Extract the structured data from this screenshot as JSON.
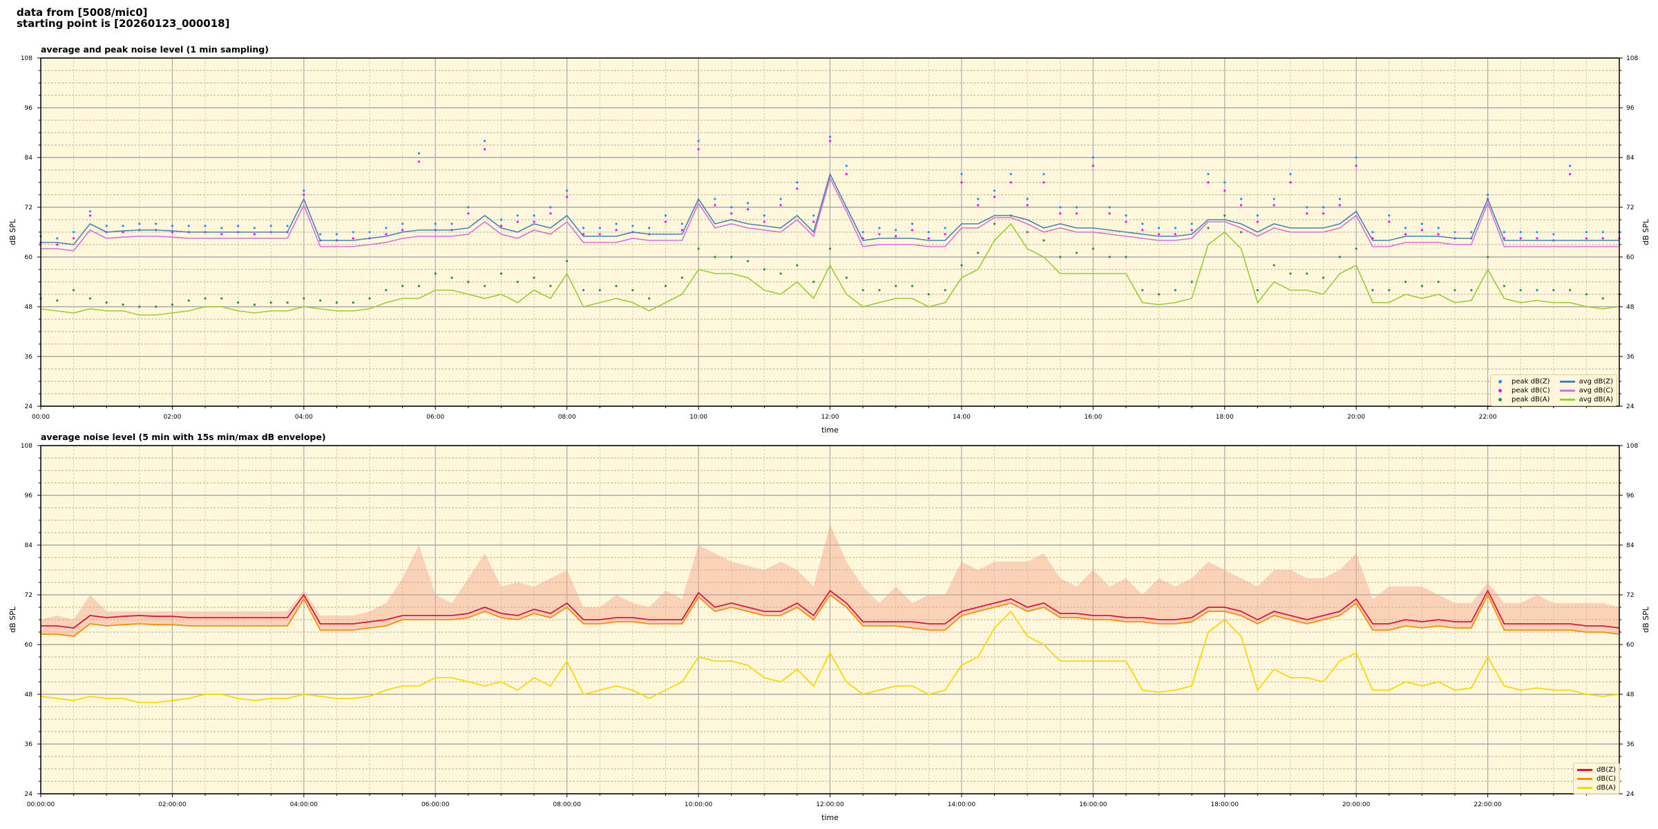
{
  "header": {
    "line1": "data from [5008/mic0]",
    "line2": "starting point is [20260123_000018]"
  },
  "colors": {
    "background": "#fff8dc",
    "peak_z": "#1e90ff",
    "peak_c": "#ff00ff",
    "peak_a": "#2e8b57",
    "avg_z": "#4682b4",
    "avg_c": "#da70d6",
    "avg_a": "#9acd32",
    "db_z": "#dc143c",
    "db_c": "#ff8c00",
    "db_a": "#ffd700",
    "envelope": "#f2a48c"
  },
  "chart_data": [
    {
      "type": "line",
      "title": "average and peak noise level (1 min sampling)",
      "xlabel": "time",
      "ylabel": "dB SPL",
      "xlim_hours": [
        0,
        24
      ],
      "ylim": [
        24,
        108
      ],
      "yticks": [
        "108",
        "96",
        "84",
        "72",
        "60",
        "48",
        "36",
        "24"
      ],
      "xticks": [
        "00:00",
        "02:00",
        "04:00",
        "06:00",
        "08:00",
        "10:00",
        "12:00",
        "14:00",
        "16:00",
        "18:00",
        "20:00",
        "22:00"
      ],
      "grid": true,
      "legend_position": "bottom-right",
      "x_step_minutes": 15,
      "series": [
        {
          "name": "peak dB(Z)",
          "kind": "scatter",
          "color": "#1e90ff",
          "values": [
            65,
            64.5,
            66,
            71,
            67.5,
            67.5,
            68,
            68,
            67.5,
            67.5,
            67.5,
            67,
            67.5,
            67,
            67.5,
            67.5,
            76,
            65.5,
            65.5,
            66,
            66,
            67,
            68,
            85,
            68,
            68,
            72,
            88,
            69,
            70,
            70,
            72,
            76,
            67,
            67,
            68,
            67.5,
            67,
            70,
            68,
            88,
            74,
            72,
            73,
            70,
            74,
            78,
            70,
            89,
            82,
            66,
            67,
            66.5,
            68,
            66,
            67,
            80,
            74,
            76,
            80,
            74,
            80,
            72,
            72,
            84,
            72,
            70,
            68,
            67,
            67,
            68,
            80,
            78,
            74,
            70,
            74,
            80,
            72,
            72,
            74,
            84,
            66,
            70,
            67,
            68,
            67,
            66,
            66,
            75,
            66,
            66,
            66,
            65.5,
            82,
            66,
            66,
            66
          ]
        },
        {
          "name": "peak dB(C)",
          "kind": "scatter",
          "color": "#ff00ff",
          "values": [
            63.5,
            63,
            64.5,
            70,
            66,
            66,
            66.5,
            66.5,
            66,
            66,
            66,
            65.5,
            66,
            65.5,
            66,
            66,
            75,
            64,
            64,
            64.5,
            64.5,
            65.5,
            66.5,
            83,
            66.5,
            66.5,
            70.5,
            86,
            67.5,
            68.5,
            68.5,
            70.5,
            74.5,
            65.5,
            65.5,
            66.5,
            66,
            65.5,
            68.5,
            66.5,
            86,
            72.5,
            70.5,
            71.5,
            68.5,
            72.5,
            76.5,
            68.5,
            88,
            80,
            64.5,
            65.5,
            65,
            66.5,
            64.5,
            65.5,
            78,
            72.5,
            74.5,
            78,
            72.5,
            78,
            70.5,
            70.5,
            82,
            70.5,
            68.5,
            66.5,
            65.5,
            65.5,
            66.5,
            78,
            76,
            72.5,
            68.5,
            72.5,
            78,
            70.5,
            70.5,
            72.5,
            82,
            64.5,
            68.5,
            65.5,
            66.5,
            65.5,
            64.5,
            64.5,
            74,
            64.5,
            64.5,
            64.5,
            64,
            80,
            64.5,
            64.5,
            64.5
          ]
        },
        {
          "name": "peak dB(A)",
          "kind": "scatter",
          "color": "#2e8b57",
          "values": [
            50,
            49.5,
            52,
            50,
            49,
            48.5,
            48,
            48,
            48.5,
            49.5,
            50,
            50,
            49,
            48.5,
            49,
            49,
            50,
            49.5,
            49,
            49,
            50,
            52,
            53,
            53,
            56,
            55,
            54,
            53,
            56,
            54,
            55,
            53,
            59,
            52,
            52,
            53,
            52,
            50,
            53,
            55,
            62,
            60,
            60,
            59,
            57,
            56,
            58,
            54,
            62,
            55,
            52,
            52,
            53,
            53,
            51,
            52,
            58,
            61,
            68,
            70,
            66,
            64,
            60,
            61,
            62,
            60,
            60,
            52,
            51,
            52,
            54,
            67,
            70,
            66,
            52,
            58,
            56,
            56,
            55,
            60,
            62,
            52,
            52,
            54,
            53,
            54,
            52,
            52,
            60,
            53,
            52,
            52,
            52,
            52,
            51,
            50,
            51
          ]
        },
        {
          "name": "avg dB(Z)",
          "kind": "line",
          "color": "#4682b4",
          "values": [
            63.5,
            63.5,
            63,
            68,
            66,
            66.3,
            66.5,
            66.5,
            66.3,
            66,
            66,
            66,
            66,
            66,
            66,
            66,
            74,
            64,
            64,
            64,
            64.5,
            65,
            66,
            66.5,
            66.5,
            66.5,
            67,
            70,
            67,
            66,
            68,
            67,
            70,
            65,
            65,
            65,
            66,
            65.5,
            65.5,
            65.5,
            74,
            68,
            69,
            68,
            67.5,
            67,
            70,
            66,
            80,
            72,
            64,
            64.5,
            64.5,
            64.5,
            64,
            64,
            68,
            68,
            70,
            70,
            69,
            67,
            68,
            67,
            67,
            66.5,
            66,
            65.5,
            65,
            65,
            65.5,
            69,
            69,
            68,
            66,
            68,
            67,
            67,
            67,
            68,
            71,
            64,
            64,
            65,
            65,
            65,
            64.5,
            64.5,
            74,
            64,
            64,
            64,
            64,
            64,
            64,
            64,
            64
          ]
        },
        {
          "name": "avg dB(C)",
          "kind": "line",
          "color": "#da70d6",
          "values": [
            62,
            62,
            61.5,
            66.5,
            64.5,
            64.8,
            65,
            65,
            64.8,
            64.5,
            64.5,
            64.5,
            64.5,
            64.5,
            64.5,
            64.5,
            72.5,
            62.5,
            62.5,
            62.5,
            63,
            63.5,
            64.5,
            65,
            65,
            65,
            65.5,
            68.5,
            65.5,
            64.5,
            66.5,
            65.5,
            68.5,
            63.5,
            63.5,
            63.5,
            64.5,
            64,
            64,
            64,
            73,
            67,
            68,
            67,
            66.5,
            66,
            69,
            65,
            79,
            71,
            62.5,
            63,
            63,
            63,
            62.5,
            62.5,
            67,
            67,
            69.5,
            69.5,
            68,
            66,
            67,
            66,
            66,
            65.5,
            65,
            64.5,
            64,
            64,
            64.5,
            68.5,
            68.5,
            67,
            65,
            67,
            66,
            66,
            66,
            67,
            70,
            62.5,
            62.5,
            63.5,
            63.5,
            63.5,
            63,
            63,
            73,
            62.5,
            62.5,
            62.5,
            62.5,
            62.5,
            62.5,
            62.5,
            62.5
          ]
        },
        {
          "name": "avg dB(A)",
          "kind": "line",
          "color": "#9acd32",
          "values": [
            47.5,
            47,
            46.5,
            47.5,
            47,
            47,
            46,
            46,
            46.5,
            47,
            48,
            48,
            47,
            46.5,
            47,
            47,
            48,
            47.5,
            47,
            47,
            47.5,
            49,
            50,
            50,
            52,
            52,
            51,
            50,
            51,
            49,
            52,
            50,
            56,
            48,
            49,
            50,
            49,
            47,
            49,
            51,
            57,
            56,
            56,
            55,
            52,
            51,
            54,
            50,
            58,
            51,
            48,
            49,
            50,
            50,
            48,
            49,
            55,
            57,
            64,
            68,
            62,
            60,
            56,
            56,
            56,
            56,
            56,
            49,
            48.5,
            49,
            50,
            63,
            66,
            62,
            49,
            54,
            52,
            52,
            51,
            56,
            58,
            49,
            49,
            51,
            50,
            51,
            49,
            49.5,
            57,
            50,
            49,
            49.5,
            49,
            49,
            48,
            47.5,
            48
          ]
        }
      ]
    },
    {
      "type": "line",
      "title": "average noise level (5 min with 15s min/max dB envelope)",
      "xlabel": "time",
      "ylabel": "dB SPL",
      "xlim_hours": [
        0,
        24
      ],
      "ylim": [
        24,
        108
      ],
      "yticks": [
        "108",
        "96",
        "84",
        "72",
        "60",
        "48",
        "36",
        "24"
      ],
      "xticks": [
        "00:00:00",
        "02:00:00",
        "04:00:00",
        "06:00:00",
        "08:00:00",
        "10:00:00",
        "12:00:00",
        "14:00:00",
        "16:00:00",
        "18:00:00",
        "20:00:00",
        "22:00:00"
      ],
      "grid": true,
      "legend_position": "bottom-right",
      "x_step_minutes": 15,
      "envelope_max": [
        66,
        67,
        66,
        72,
        68,
        68,
        68,
        68,
        68,
        68,
        68,
        68,
        68,
        68,
        68,
        68,
        73,
        67,
        67,
        67,
        68,
        70,
        76,
        84,
        72,
        70,
        76,
        82,
        74,
        75,
        74,
        76,
        78,
        69,
        69,
        72,
        70,
        69,
        73,
        71,
        84,
        82,
        80,
        79,
        78,
        80,
        78,
        74,
        89,
        80,
        74,
        70,
        74,
        70,
        72,
        72,
        80,
        78,
        80,
        80,
        80,
        82,
        76,
        74,
        78,
        74,
        76,
        72,
        76,
        74,
        76,
        80,
        78,
        76,
        74,
        78,
        78,
        76,
        76,
        78,
        82,
        71,
        74,
        74,
        74,
        72,
        70,
        70,
        75,
        70,
        70,
        72,
        70,
        70,
        70,
        70,
        69
      ],
      "series": [
        {
          "name": "dB(Z)",
          "color": "#dc143c",
          "values": [
            64.5,
            64.5,
            64,
            67,
            66.5,
            66.8,
            67,
            66.8,
            66.8,
            66.5,
            66.5,
            66.5,
            66.5,
            66.5,
            66.5,
            66.5,
            72,
            65,
            65,
            65,
            65.5,
            66,
            67,
            67,
            67,
            67,
            67.5,
            69,
            67.5,
            67,
            68.5,
            67.5,
            70,
            66,
            66,
            66.5,
            66.5,
            66,
            66,
            66,
            72.5,
            69,
            70,
            69,
            68,
            68,
            70,
            67,
            73,
            70,
            65.5,
            65.5,
            65.5,
            65.5,
            65,
            65,
            68,
            69,
            70,
            71,
            69,
            70,
            67.5,
            67.5,
            67,
            67,
            66.5,
            66.5,
            66,
            66,
            66.5,
            69,
            69,
            68,
            66,
            68,
            67,
            66,
            67,
            68,
            71,
            65,
            65,
            66,
            65.5,
            66,
            65.5,
            65.5,
            73,
            65,
            65,
            65,
            65,
            65,
            64.5,
            64.5,
            64
          ]
        },
        {
          "name": "dB(C)",
          "color": "#ff8c00",
          "values": [
            62.5,
            62.5,
            62,
            65,
            64.5,
            64.8,
            65,
            64.8,
            64.8,
            64.5,
            64.5,
            64.5,
            64.5,
            64.5,
            64.5,
            64.5,
            71,
            63.5,
            63.5,
            63.5,
            64,
            64.5,
            66,
            66,
            66,
            66,
            66.5,
            68,
            66.5,
            66,
            67.5,
            66.5,
            69,
            65,
            65,
            65.5,
            65.5,
            65,
            65,
            65,
            71.5,
            68,
            69,
            68,
            67,
            67,
            69,
            66,
            72,
            69,
            64.5,
            64.5,
            64.5,
            64,
            63.5,
            63.5,
            67,
            68,
            69,
            70,
            68,
            69,
            66.5,
            66.5,
            66,
            66,
            65.5,
            65.5,
            65,
            65,
            65.5,
            68,
            68,
            67,
            65,
            67,
            66,
            65,
            66,
            67,
            70,
            63.5,
            63.5,
            64.5,
            64,
            64.5,
            64,
            64,
            72,
            63.5,
            63.5,
            63.5,
            63.5,
            63.5,
            63,
            63,
            62.5
          ]
        },
        {
          "name": "dB(A)",
          "color": "#ffd700",
          "values": [
            47.5,
            47,
            46.5,
            47.5,
            47,
            47,
            46,
            46,
            46.5,
            47,
            48,
            48,
            47,
            46.5,
            47,
            47,
            48,
            47.5,
            47,
            47,
            47.5,
            49,
            50,
            50,
            52,
            52,
            51,
            50,
            51,
            49,
            52,
            50,
            56,
            48,
            49,
            50,
            49,
            47,
            49,
            51,
            57,
            56,
            56,
            55,
            52,
            51,
            54,
            50,
            58,
            51,
            48,
            49,
            50,
            50,
            48,
            49,
            55,
            57,
            64,
            68,
            62,
            60,
            56,
            56,
            56,
            56,
            56,
            49,
            48.5,
            49,
            50,
            63,
            66,
            62,
            49,
            54,
            52,
            52,
            51,
            56,
            58,
            49,
            49,
            51,
            50,
            51,
            49,
            49.5,
            57,
            50,
            49,
            49.5,
            49,
            49,
            48,
            47.5,
            48
          ]
        }
      ]
    }
  ]
}
